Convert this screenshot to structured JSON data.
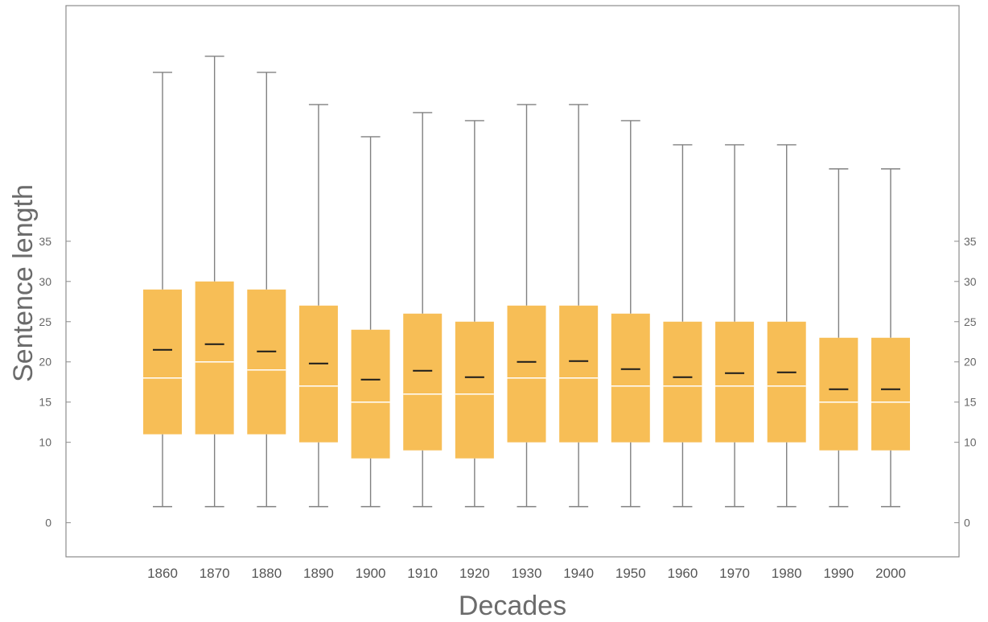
{
  "chart_data": {
    "type": "box",
    "xlabel": "Decades",
    "ylabel": "Sentence length",
    "categories": [
      "1860",
      "1870",
      "1880",
      "1890",
      "1900",
      "1910",
      "1920",
      "1930",
      "1940",
      "1950",
      "1960",
      "1970",
      "1980",
      "1990",
      "2000"
    ],
    "yticks": [
      0,
      10,
      15,
      20,
      25,
      30,
      35
    ],
    "ylim": [
      -3.5,
      63
    ],
    "grid": false,
    "box_color": "#F7BE56",
    "whisker_color": "#808080",
    "median_color": "#ffffff",
    "mean_color": "#1a1a1a",
    "frame_color": "#8c8c8c",
    "boxes": [
      {
        "whisker_low": 2,
        "q1": 11,
        "median": 18,
        "mean": 21.5,
        "q3": 29,
        "whisker_high": 56
      },
      {
        "whisker_low": 2,
        "q1": 11,
        "median": 20,
        "mean": 22.2,
        "q3": 30,
        "whisker_high": 58
      },
      {
        "whisker_low": 2,
        "q1": 11,
        "median": 19,
        "mean": 21.3,
        "q3": 29,
        "whisker_high": 56
      },
      {
        "whisker_low": 2,
        "q1": 10,
        "median": 17,
        "mean": 19.8,
        "q3": 27,
        "whisker_high": 52
      },
      {
        "whisker_low": 2,
        "q1": 8,
        "median": 15,
        "mean": 17.8,
        "q3": 24,
        "whisker_high": 48
      },
      {
        "whisker_low": 2,
        "q1": 9,
        "median": 16,
        "mean": 18.9,
        "q3": 26,
        "whisker_high": 51
      },
      {
        "whisker_low": 2,
        "q1": 8,
        "median": 16,
        "mean": 18.1,
        "q3": 25,
        "whisker_high": 50
      },
      {
        "whisker_low": 2,
        "q1": 10,
        "median": 18,
        "mean": 20.0,
        "q3": 27,
        "whisker_high": 52
      },
      {
        "whisker_low": 2,
        "q1": 10,
        "median": 18,
        "mean": 20.1,
        "q3": 27,
        "whisker_high": 52
      },
      {
        "whisker_low": 2,
        "q1": 10,
        "median": 17,
        "mean": 19.1,
        "q3": 26,
        "whisker_high": 50
      },
      {
        "whisker_low": 2,
        "q1": 10,
        "median": 17,
        "mean": 18.1,
        "q3": 25,
        "whisker_high": 47
      },
      {
        "whisker_low": 2,
        "q1": 10,
        "median": 17,
        "mean": 18.6,
        "q3": 25,
        "whisker_high": 47
      },
      {
        "whisker_low": 2,
        "q1": 10,
        "median": 17,
        "mean": 18.7,
        "q3": 25,
        "whisker_high": 47
      },
      {
        "whisker_low": 2,
        "q1": 9,
        "median": 15,
        "mean": 16.6,
        "q3": 23,
        "whisker_high": 44
      },
      {
        "whisker_low": 2,
        "q1": 9,
        "median": 15,
        "mean": 16.6,
        "q3": 23,
        "whisker_high": 44
      }
    ]
  }
}
